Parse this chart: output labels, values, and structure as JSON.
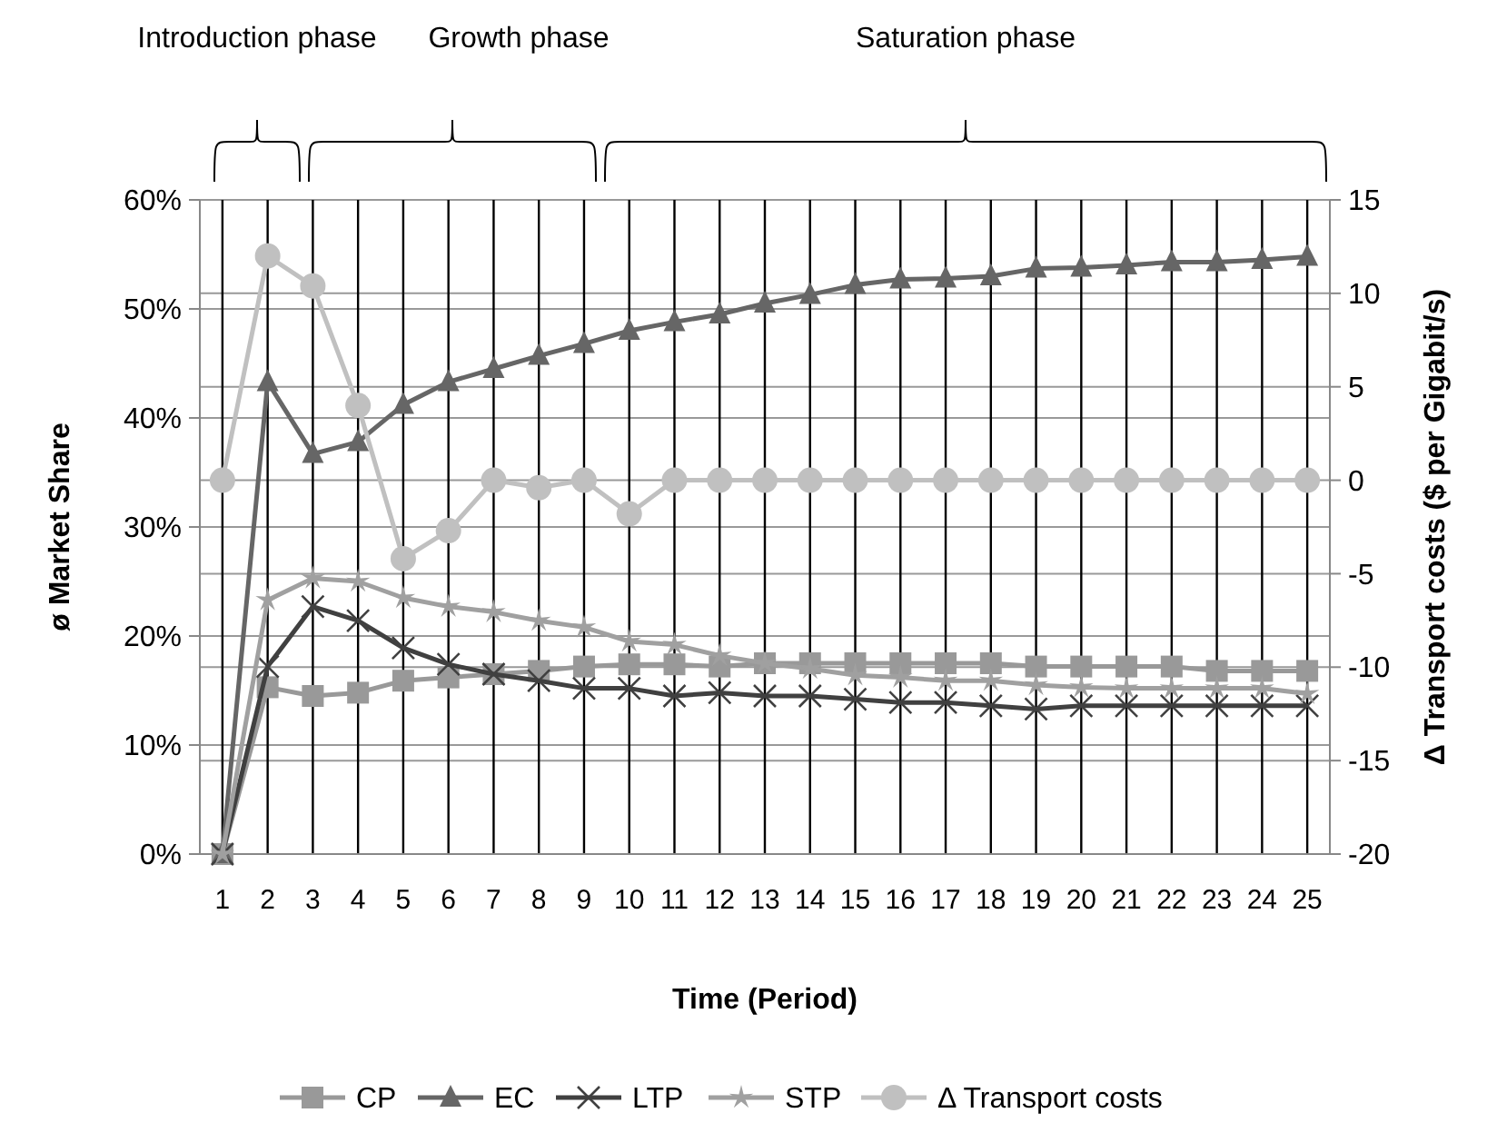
{
  "chart_data": {
    "type": "line",
    "xlabel": "Time (Period)",
    "ylabel": "ø Market Share",
    "y2label": "Δ Transport costs ($ per Gigabit/s)",
    "x": [
      1,
      2,
      3,
      4,
      5,
      6,
      7,
      8,
      9,
      10,
      11,
      12,
      13,
      14,
      15,
      16,
      17,
      18,
      19,
      20,
      21,
      22,
      23,
      24,
      25
    ],
    "xlim": [
      0.5,
      25.5
    ],
    "xticks": [
      1,
      2,
      3,
      4,
      5,
      6,
      7,
      8,
      9,
      10,
      11,
      12,
      13,
      14,
      15,
      16,
      17,
      18,
      19,
      20,
      21,
      22,
      23,
      24,
      25
    ],
    "ylim": [
      0,
      60
    ],
    "yticks": [
      {
        "value": 0,
        "label": "0%"
      },
      {
        "value": 10,
        "label": "10%"
      },
      {
        "value": 20,
        "label": "20%"
      },
      {
        "value": 30,
        "label": "30%"
      },
      {
        "value": 40,
        "label": "40%"
      },
      {
        "value": 50,
        "label": "50%"
      },
      {
        "value": 60,
        "label": "60%"
      }
    ],
    "y2lim": [
      -20,
      15
    ],
    "y2ticks": [
      -20,
      -15,
      -10,
      -5,
      0,
      5,
      10,
      15
    ],
    "grid": true,
    "legend": "bottom",
    "annotations": [
      "Introduction phase",
      "Growth phase",
      "Saturation phase"
    ],
    "series": [
      {
        "name": "CP",
        "color": "#999999",
        "marker": "square",
        "values": [
          0,
          15.3,
          14.5,
          14.8,
          15.9,
          16.2,
          16.5,
          16.8,
          17.2,
          17.4,
          17.4,
          17.2,
          17.5,
          17.5,
          17.5,
          17.5,
          17.5,
          17.5,
          17.2,
          17.2,
          17.2,
          17.2,
          16.8,
          16.8,
          16.8
        ]
      },
      {
        "name": "EC",
        "color": "#666666",
        "marker": "triangle",
        "values": [
          0,
          43.3,
          36.7,
          37.8,
          41.2,
          43.3,
          44.5,
          45.7,
          46.8,
          48,
          48.8,
          49.5,
          50.5,
          51.3,
          52.2,
          52.7,
          52.8,
          53,
          53.7,
          53.8,
          54,
          54.3,
          54.3,
          54.5,
          54.8
        ]
      },
      {
        "name": "LTP",
        "color": "#404040",
        "marker": "cross",
        "values": [
          0,
          17.2,
          22.7,
          21.4,
          18.9,
          17.4,
          16.5,
          15.9,
          15.2,
          15.2,
          14.5,
          14.8,
          14.5,
          14.5,
          14.2,
          13.9,
          13.9,
          13.6,
          13.3,
          13.6,
          13.6,
          13.6,
          13.6,
          13.6,
          13.6
        ]
      },
      {
        "name": "STP",
        "color": "#a0a0a0",
        "marker": "star",
        "values": [
          0,
          23.3,
          25.3,
          25,
          23.5,
          22.7,
          22.2,
          21.4,
          20.8,
          19.5,
          19.2,
          18.2,
          17.5,
          17,
          16.4,
          16.2,
          15.9,
          15.9,
          15.5,
          15.3,
          15.2,
          15.2,
          15.2,
          15.2,
          14.7
        ]
      },
      {
        "name": "Δ Transport costs",
        "color": "#c0c0c0",
        "marker": "circle",
        "axis": "y2",
        "values": [
          0,
          12,
          10.4,
          4,
          -4.2,
          -2.7,
          0,
          -0.4,
          0,
          -1.8,
          0,
          0,
          0,
          0,
          0,
          0,
          0,
          0,
          0,
          0,
          0,
          0,
          0,
          0,
          0
        ]
      }
    ]
  }
}
